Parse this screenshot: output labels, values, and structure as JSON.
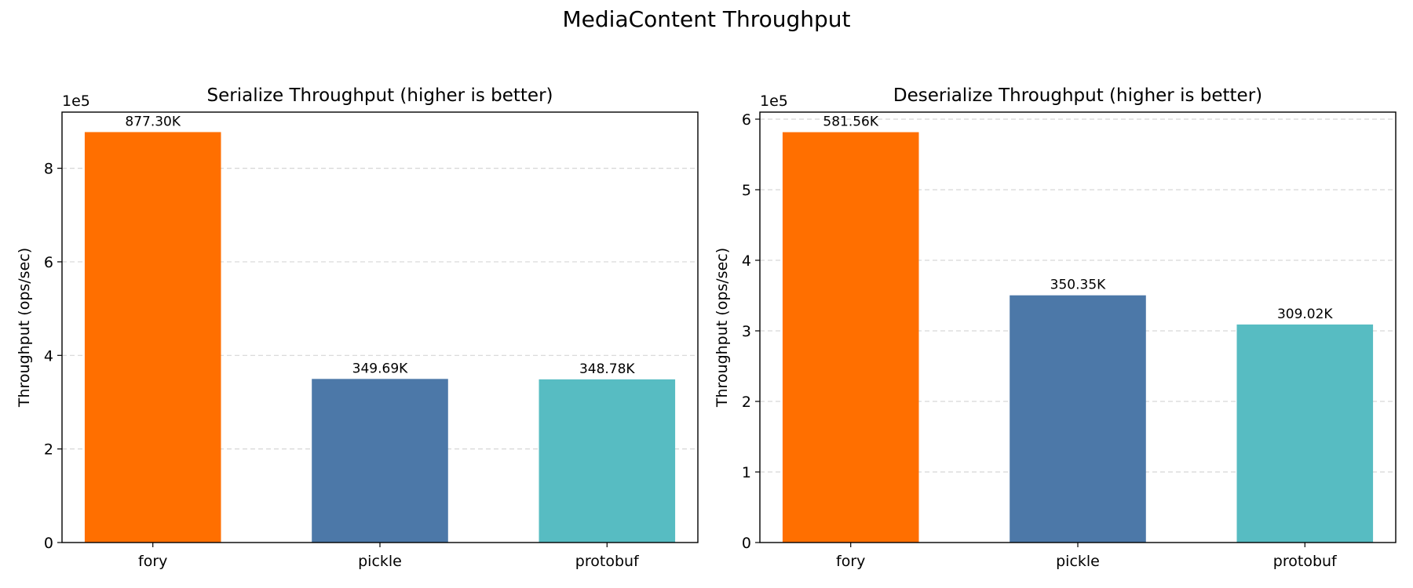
{
  "figure": {
    "suptitle": "MediaContent Throughput"
  },
  "chart_data": [
    {
      "type": "bar",
      "title": "Serialize Throughput (higher is better)",
      "xlabel": "",
      "ylabel": "Throughput (ops/sec)",
      "categories": [
        "fory",
        "pickle",
        "protobuf"
      ],
      "values": [
        877300,
        349690,
        348780
      ],
      "data_labels": [
        "877.30K",
        "349.69K",
        "348.78K"
      ],
      "colors": [
        "#ff6f00",
        "#4c78a8",
        "#57bcc2"
      ],
      "ylim": [
        0,
        920000
      ],
      "yticks": [
        0,
        200000,
        400000,
        600000,
        800000
      ],
      "ytick_labels": [
        "0",
        "2",
        "4",
        "6",
        "8"
      ],
      "y_offset_text": "1e5",
      "grid": "y-dashed"
    },
    {
      "type": "bar",
      "title": "Deserialize Throughput (higher is better)",
      "xlabel": "",
      "ylabel": "Throughput (ops/sec)",
      "categories": [
        "fory",
        "pickle",
        "protobuf"
      ],
      "values": [
        581560,
        350350,
        309020
      ],
      "data_labels": [
        "581.56K",
        "350.35K",
        "309.02K"
      ],
      "colors": [
        "#ff6f00",
        "#4c78a8",
        "#57bcc2"
      ],
      "ylim": [
        0,
        610000
      ],
      "yticks": [
        0,
        100000,
        200000,
        300000,
        400000,
        500000,
        600000
      ],
      "ytick_labels": [
        "0",
        "1",
        "2",
        "3",
        "4",
        "5",
        "6"
      ],
      "y_offset_text": "1e5",
      "grid": "y-dashed"
    }
  ]
}
